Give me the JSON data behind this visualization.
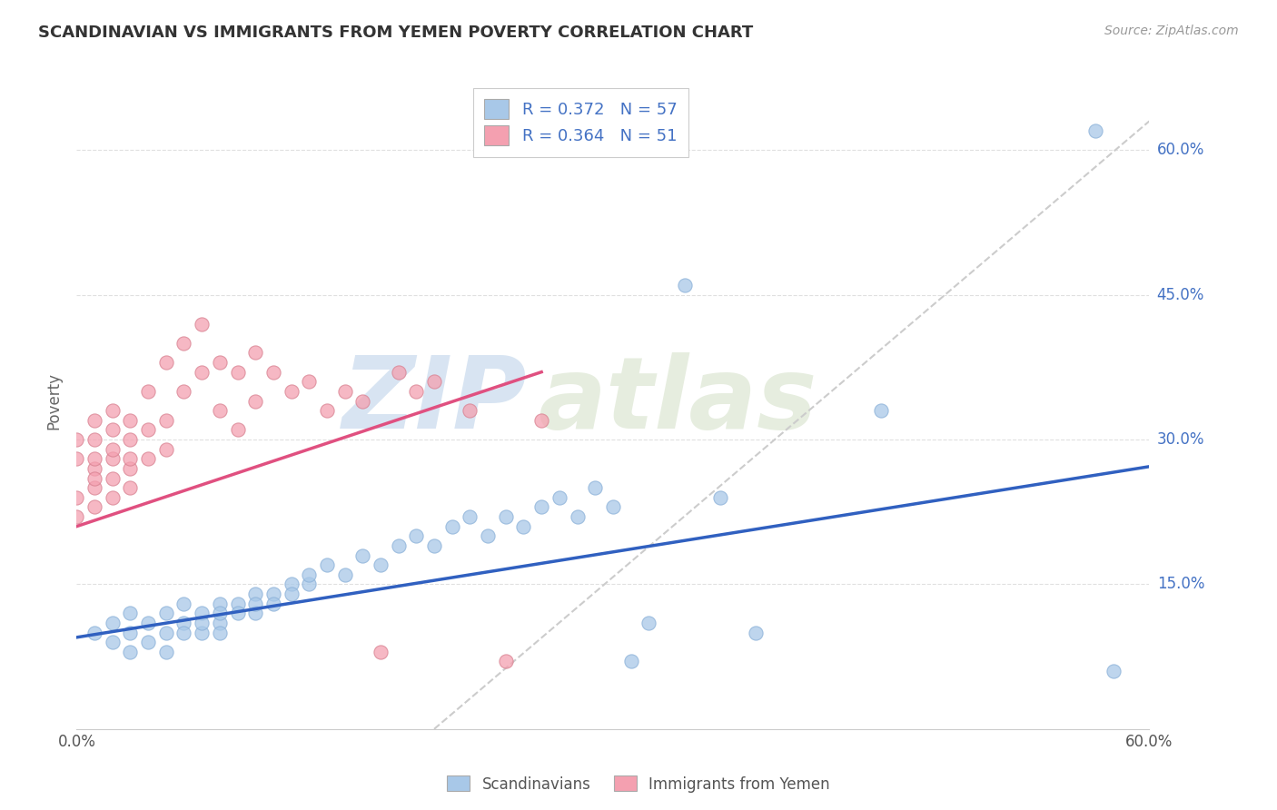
{
  "title": "SCANDINAVIAN VS IMMIGRANTS FROM YEMEN POVERTY CORRELATION CHART",
  "source": "Source: ZipAtlas.com",
  "ylabel": "Poverty",
  "watermark_zip": "ZIP",
  "watermark_atlas": "atlas",
  "legend_r_blue": "R = 0.372",
  "legend_n_blue": "N = 57",
  "legend_r_pink": "R = 0.364",
  "legend_n_pink": "N = 51",
  "legend_label_blue": "Scandinavians",
  "legend_label_pink": "Immigrants from Yemen",
  "ytick_labels": [
    "15.0%",
    "30.0%",
    "45.0%",
    "60.0%"
  ],
  "ytick_values": [
    0.15,
    0.3,
    0.45,
    0.6
  ],
  "xlim": [
    0.0,
    0.6
  ],
  "ylim": [
    0.0,
    0.68
  ],
  "blue_color": "#a8c8e8",
  "pink_color": "#f4a0b0",
  "blue_line_color": "#3060c0",
  "pink_line_color": "#e05080",
  "trendline_color": "#cccccc",
  "blue_line_x0": 0.0,
  "blue_line_y0": 0.095,
  "blue_line_x1": 0.6,
  "blue_line_y1": 0.272,
  "pink_line_x0": 0.0,
  "pink_line_y0": 0.21,
  "pink_line_x1": 0.26,
  "pink_line_y1": 0.37,
  "trendline_x0": 0.2,
  "trendline_y0": 0.0,
  "trendline_x1": 0.6,
  "trendline_y1": 0.63,
  "background_color": "#ffffff",
  "grid_color": "#e0e0e0",
  "scandinavian_x": [
    0.01,
    0.02,
    0.02,
    0.03,
    0.03,
    0.03,
    0.04,
    0.04,
    0.05,
    0.05,
    0.05,
    0.06,
    0.06,
    0.06,
    0.07,
    0.07,
    0.07,
    0.08,
    0.08,
    0.08,
    0.08,
    0.09,
    0.09,
    0.1,
    0.1,
    0.1,
    0.11,
    0.11,
    0.12,
    0.12,
    0.13,
    0.13,
    0.14,
    0.15,
    0.16,
    0.17,
    0.18,
    0.19,
    0.2,
    0.21,
    0.22,
    0.23,
    0.24,
    0.25,
    0.26,
    0.27,
    0.28,
    0.29,
    0.3,
    0.31,
    0.32,
    0.34,
    0.36,
    0.38,
    0.45,
    0.57,
    0.58
  ],
  "scandinavian_y": [
    0.1,
    0.09,
    0.11,
    0.08,
    0.1,
    0.12,
    0.09,
    0.11,
    0.1,
    0.12,
    0.08,
    0.11,
    0.13,
    0.1,
    0.12,
    0.1,
    0.11,
    0.13,
    0.11,
    0.12,
    0.1,
    0.13,
    0.12,
    0.14,
    0.12,
    0.13,
    0.14,
    0.13,
    0.15,
    0.14,
    0.15,
    0.16,
    0.17,
    0.16,
    0.18,
    0.17,
    0.19,
    0.2,
    0.19,
    0.21,
    0.22,
    0.2,
    0.22,
    0.21,
    0.23,
    0.24,
    0.22,
    0.25,
    0.23,
    0.07,
    0.11,
    0.46,
    0.24,
    0.1,
    0.33,
    0.62,
    0.06
  ],
  "yemen_x": [
    0.0,
    0.0,
    0.0,
    0.0,
    0.01,
    0.01,
    0.01,
    0.01,
    0.01,
    0.01,
    0.01,
    0.02,
    0.02,
    0.02,
    0.02,
    0.02,
    0.02,
    0.03,
    0.03,
    0.03,
    0.03,
    0.03,
    0.04,
    0.04,
    0.04,
    0.05,
    0.05,
    0.05,
    0.06,
    0.06,
    0.07,
    0.07,
    0.08,
    0.08,
    0.09,
    0.09,
    0.1,
    0.1,
    0.11,
    0.12,
    0.13,
    0.14,
    0.15,
    0.16,
    0.17,
    0.18,
    0.19,
    0.2,
    0.22,
    0.24,
    0.26
  ],
  "yemen_y": [
    0.28,
    0.3,
    0.22,
    0.24,
    0.27,
    0.32,
    0.25,
    0.28,
    0.23,
    0.3,
    0.26,
    0.31,
    0.28,
    0.33,
    0.26,
    0.29,
    0.24,
    0.3,
    0.27,
    0.32,
    0.28,
    0.25,
    0.35,
    0.31,
    0.28,
    0.38,
    0.32,
    0.29,
    0.4,
    0.35,
    0.42,
    0.37,
    0.38,
    0.33,
    0.37,
    0.31,
    0.39,
    0.34,
    0.37,
    0.35,
    0.36,
    0.33,
    0.35,
    0.34,
    0.08,
    0.37,
    0.35,
    0.36,
    0.33,
    0.07,
    0.32
  ]
}
